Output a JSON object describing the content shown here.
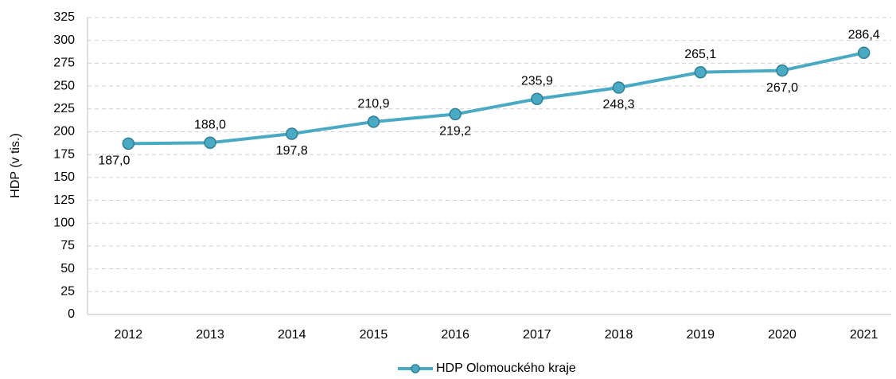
{
  "chart_data": {
    "type": "line",
    "ylabel": "HDP (v tis.)",
    "categories": [
      "2012",
      "2013",
      "2014",
      "2015",
      "2016",
      "2017",
      "2018",
      "2019",
      "2020",
      "2021"
    ],
    "series": [
      {
        "name": "HDP Olomouckého kraje",
        "color": "#4aaac3",
        "values": [
          187.0,
          188.0,
          197.8,
          210.9,
          219.2,
          235.9,
          248.3,
          265.1,
          267.0,
          286.4
        ],
        "value_labels": [
          "187,0",
          "188,0",
          "197,8",
          "210,9",
          "219,2",
          "235,9",
          "248,3",
          "265,1",
          "267,0",
          "286,4"
        ]
      }
    ],
    "ylim": [
      0,
      325
    ],
    "yticks": [
      0,
      25,
      50,
      75,
      100,
      125,
      150,
      175,
      200,
      225,
      250,
      275,
      300,
      325
    ],
    "grid": true,
    "legend": "bottom"
  }
}
